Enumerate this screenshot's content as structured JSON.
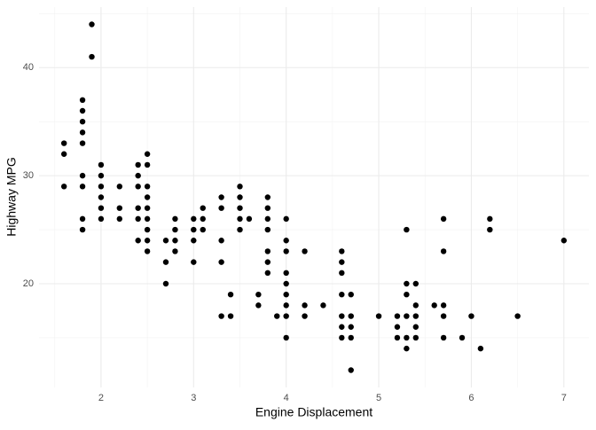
{
  "chart_data": {
    "type": "scatter",
    "x_label": "Engine Displacement",
    "y_label": "Highway MPG",
    "x": [
      1.6,
      1.6,
      1.6,
      1.8,
      1.8,
      1.8,
      1.8,
      1.8,
      1.8,
      1.8,
      1.8,
      1.8,
      1.9,
      1.9,
      2.0,
      2.0,
      2.0,
      2.0,
      2.0,
      2.0,
      2.2,
      2.2,
      2.2,
      2.4,
      2.4,
      2.4,
      2.4,
      2.4,
      2.4,
      2.5,
      2.5,
      2.5,
      2.5,
      2.5,
      2.5,
      2.5,
      2.5,
      2.5,
      2.7,
      2.7,
      2.7,
      2.8,
      2.8,
      2.8,
      2.8,
      3.0,
      3.0,
      3.0,
      3.0,
      3.1,
      3.1,
      3.1,
      3.3,
      3.3,
      3.3,
      3.3,
      3.3,
      3.4,
      3.4,
      3.5,
      3.5,
      3.5,
      3.5,
      3.5,
      3.6,
      3.7,
      3.7,
      3.8,
      3.8,
      3.8,
      3.8,
      3.8,
      3.8,
      3.8,
      3.9,
      4.0,
      4.0,
      4.0,
      4.0,
      4.0,
      4.0,
      4.0,
      4.0,
      4.0,
      4.2,
      4.2,
      4.2,
      4.4,
      4.6,
      4.6,
      4.6,
      4.6,
      4.6,
      4.6,
      4.6,
      4.7,
      4.7,
      4.7,
      4.7,
      4.7,
      5.0,
      5.2,
      5.2,
      5.2,
      5.3,
      5.3,
      5.3,
      5.3,
      5.3,
      5.3,
      5.4,
      5.4,
      5.4,
      5.4,
      5.4,
      5.6,
      5.7,
      5.7,
      5.7,
      5.7,
      5.7,
      5.9,
      6.0,
      6.1,
      6.2,
      6.2,
      6.5,
      7.0
    ],
    "values": [
      33,
      32,
      29,
      37,
      36,
      35,
      34,
      33,
      30,
      29,
      26,
      25,
      44,
      41,
      31,
      30,
      29,
      28,
      27,
      26,
      29,
      27,
      26,
      31,
      30,
      29,
      27,
      26,
      24,
      32,
      31,
      29,
      28,
      27,
      26,
      25,
      24,
      23,
      24,
      22,
      20,
      26,
      25,
      24,
      23,
      26,
      25,
      24,
      22,
      27,
      26,
      25,
      28,
      27,
      24,
      22,
      17,
      19,
      17,
      29,
      28,
      27,
      26,
      25,
      26,
      19,
      18,
      28,
      27,
      26,
      25,
      23,
      22,
      21,
      17,
      26,
      24,
      23,
      21,
      20,
      19,
      18,
      17,
      15,
      23,
      18,
      17,
      18,
      23,
      22,
      21,
      19,
      17,
      16,
      15,
      19,
      17,
      16,
      15,
      12,
      17,
      17,
      16,
      15,
      25,
      20,
      19,
      17,
      15,
      14,
      20,
      18,
      17,
      16,
      15,
      18,
      26,
      23,
      18,
      17,
      15,
      15,
      17,
      14,
      26,
      25,
      17,
      24
    ],
    "color": "#000000",
    "xlim": [
      1.33,
      7.27
    ],
    "xticks": [
      2,
      3,
      4,
      5,
      6,
      7
    ],
    "ylim": [
      10.4,
      45.6
    ],
    "yticks": [
      20,
      30,
      40
    ],
    "grid": true
  }
}
